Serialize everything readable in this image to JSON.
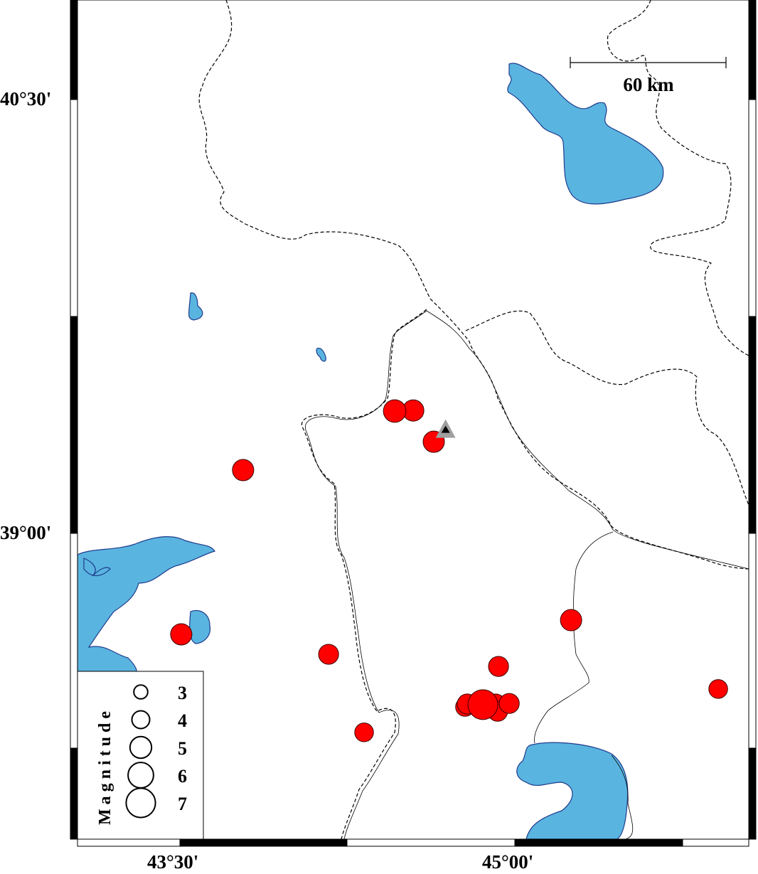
{
  "map": {
    "lat_labels": [
      {
        "text": "40°30'",
        "lat": 40.5
      },
      {
        "text": "39°00'",
        "lat": 39.0
      }
    ],
    "lon_labels": [
      {
        "text": "43°30'",
        "lon": 43.5
      },
      {
        "text": "45°00'",
        "lon": 45.0
      }
    ],
    "scale_bar": {
      "label": "60 km"
    },
    "colors": {
      "water": "#5ab4e0",
      "water_outline": "#1e3c8c",
      "event": "#ff0000",
      "station": "#a0a0a0"
    },
    "station": {
      "lon": 44.69,
      "lat": 39.36,
      "icon": "triangle-icon"
    },
    "events": [
      {
        "lon": 44.462,
        "lat": 39.423,
        "mag": 4.3
      },
      {
        "lon": 44.545,
        "lat": 39.425,
        "mag": 4.0
      },
      {
        "lon": 44.637,
        "lat": 39.317,
        "mag": 4.0
      },
      {
        "lon": 43.783,
        "lat": 39.219,
        "mag": 4.0
      },
      {
        "lon": 43.506,
        "lat": 38.651,
        "mag": 4.0
      },
      {
        "lon": 44.166,
        "lat": 38.582,
        "mag": 3.7
      },
      {
        "lon": 44.325,
        "lat": 38.312,
        "mag": 3.4
      },
      {
        "lon": 45.252,
        "lat": 38.7,
        "mag": 4.0
      },
      {
        "lon": 44.927,
        "lat": 38.54,
        "mag": 3.7
      },
      {
        "lon": 44.787,
        "lat": 38.41,
        "mag": 3.7
      },
      {
        "lon": 44.777,
        "lat": 38.4,
        "mag": 3.4
      },
      {
        "lon": 44.857,
        "lat": 38.408,
        "mag": 6.0
      },
      {
        "lon": 44.914,
        "lat": 38.41,
        "mag": 3.7
      },
      {
        "lon": 44.923,
        "lat": 38.385,
        "mag": 3.7
      },
      {
        "lon": 44.975,
        "lat": 38.412,
        "mag": 3.7
      },
      {
        "lon": 45.911,
        "lat": 38.462,
        "mag": 3.4
      }
    ],
    "legend": {
      "title": "Magnitude",
      "entries": [
        {
          "mag": 3,
          "label": "3"
        },
        {
          "mag": 4,
          "label": "4"
        },
        {
          "mag": 5,
          "label": "5"
        },
        {
          "mag": 6,
          "label": "6"
        },
        {
          "mag": 7,
          "label": "7"
        }
      ]
    }
  }
}
